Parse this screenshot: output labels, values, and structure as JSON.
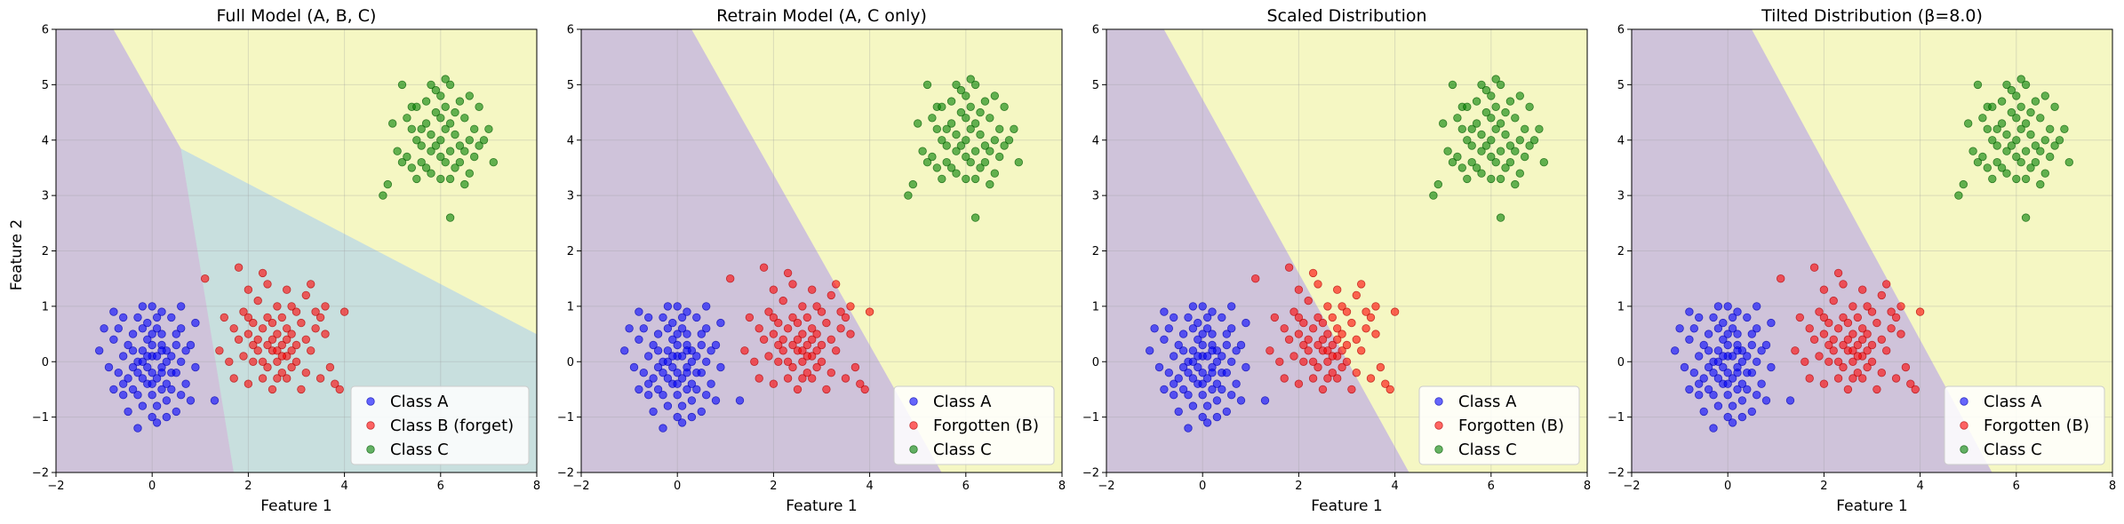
{
  "figure": {
    "ylabel": "Feature 2"
  },
  "chart_data": [
    {
      "type": "scatter",
      "title": "Full Model (A, B, C)",
      "xlabel": "Feature 1",
      "ylabel": "Feature 2",
      "xlim": [
        -2,
        8
      ],
      "ylim": [
        -2,
        6
      ],
      "xticks": [
        -2,
        0,
        2,
        4,
        6,
        8
      ],
      "yticks": [
        -2,
        -1,
        0,
        1,
        2,
        3,
        4,
        5,
        6
      ],
      "grid": true,
      "legend_position": "lower-right",
      "regions": [
        {
          "name": "Class A region",
          "color": "#cfc3da",
          "polygon": [
            [
              -2,
              6
            ],
            [
              -0.8,
              6
            ],
            [
              0.6,
              3.85
            ],
            [
              1.7,
              -2
            ],
            [
              -2,
              -2
            ]
          ]
        },
        {
          "name": "Class B region",
          "color": "#c8dfde",
          "polygon": [
            [
              0.6,
              3.85
            ],
            [
              8,
              0.5
            ],
            [
              8,
              -2
            ],
            [
              1.7,
              -2
            ]
          ]
        },
        {
          "name": "Class C region",
          "color": "#f5f7c3",
          "polygon": [
            [
              -0.8,
              6
            ],
            [
              8,
              6
            ],
            [
              8,
              0.5
            ],
            [
              0.6,
              3.85
            ]
          ]
        }
      ],
      "legend": [
        {
          "label": "Class A",
          "color": "#0000ff"
        },
        {
          "label": "Class B (forget)",
          "color": "#ff0000"
        },
        {
          "label": "Class C",
          "color": "#008000"
        }
      ]
    },
    {
      "type": "scatter",
      "title": "Retrain Model (A, C only)",
      "xlabel": "Feature 1",
      "ylabel": "",
      "xlim": [
        -2,
        8
      ],
      "ylim": [
        -2,
        6
      ],
      "xticks": [
        -2,
        0,
        2,
        4,
        6,
        8
      ],
      "yticks": [
        -2,
        -1,
        0,
        1,
        2,
        3,
        4,
        5,
        6
      ],
      "grid": true,
      "legend_position": "lower-right",
      "regions": [
        {
          "name": "Class A region",
          "color": "#cfc3da",
          "polygon": [
            [
              -2,
              6
            ],
            [
              0.3,
              6
            ],
            [
              5.5,
              -2
            ],
            [
              -2,
              -2
            ]
          ]
        },
        {
          "name": "Class C region",
          "color": "#f5f7c3",
          "polygon": [
            [
              0.3,
              6
            ],
            [
              8,
              6
            ],
            [
              8,
              -2
            ],
            [
              5.5,
              -2
            ]
          ]
        }
      ],
      "legend": [
        {
          "label": "Class A",
          "color": "#0000ff"
        },
        {
          "label": "Forgotten (B)",
          "color": "#ff0000"
        },
        {
          "label": "Class C",
          "color": "#008000"
        }
      ]
    },
    {
      "type": "scatter",
      "title": "Scaled Distribution",
      "xlabel": "Feature 1",
      "ylabel": "",
      "xlim": [
        -2,
        8
      ],
      "ylim": [
        -2,
        6
      ],
      "xticks": [
        -2,
        0,
        2,
        4,
        6,
        8
      ],
      "yticks": [
        -2,
        -1,
        0,
        1,
        2,
        3,
        4,
        5,
        6
      ],
      "grid": true,
      "legend_position": "lower-right",
      "regions": [
        {
          "name": "Class A region",
          "color": "#cfc3da",
          "polygon": [
            [
              -2,
              6
            ],
            [
              -0.8,
              6
            ],
            [
              4.3,
              -2
            ],
            [
              -2,
              -2
            ]
          ]
        },
        {
          "name": "Class C region",
          "color": "#f5f7c3",
          "polygon": [
            [
              -0.8,
              6
            ],
            [
              8,
              6
            ],
            [
              8,
              -2
            ],
            [
              4.3,
              -2
            ]
          ]
        }
      ],
      "legend": [
        {
          "label": "Class A",
          "color": "#0000ff"
        },
        {
          "label": "Forgotten (B)",
          "color": "#ff0000"
        },
        {
          "label": "Class C",
          "color": "#008000"
        }
      ]
    },
    {
      "type": "scatter",
      "title": "Tilted Distribution (β=8.0)",
      "xlabel": "Feature 1",
      "ylabel": "",
      "xlim": [
        -2,
        8
      ],
      "ylim": [
        -2,
        6
      ],
      "xticks": [
        -2,
        0,
        2,
        4,
        6,
        8
      ],
      "yticks": [
        -2,
        -1,
        0,
        1,
        2,
        3,
        4,
        5,
        6
      ],
      "grid": true,
      "legend_position": "lower-right",
      "regions": [
        {
          "name": "Class A region",
          "color": "#cfc3da",
          "polygon": [
            [
              -2,
              6
            ],
            [
              0.5,
              6
            ],
            [
              5.5,
              -2
            ],
            [
              -2,
              -2
            ]
          ]
        },
        {
          "name": "Class C region",
          "color": "#f5f7c3",
          "polygon": [
            [
              0.5,
              6
            ],
            [
              8,
              6
            ],
            [
              8,
              -2
            ],
            [
              5.5,
              -2
            ]
          ]
        }
      ],
      "legend": [
        {
          "label": "Class A",
          "color": "#0000ff"
        },
        {
          "label": "Forgotten (B)",
          "color": "#ff0000"
        },
        {
          "label": "Class C",
          "color": "#008000"
        }
      ]
    }
  ],
  "scatter_points": {
    "class_a": [
      [
        0.0,
        0.1
      ],
      [
        0.2,
        0.3
      ],
      [
        -0.3,
        0.0
      ],
      [
        0.4,
        -0.2
      ],
      [
        -0.1,
        -0.4
      ],
      [
        0.1,
        0.6
      ],
      [
        -0.5,
        0.3
      ],
      [
        0.5,
        0.5
      ],
      [
        -0.2,
        -0.8
      ],
      [
        0.3,
        -0.7
      ],
      [
        0.0,
        -1.0
      ],
      [
        -0.4,
        -0.5
      ],
      [
        0.6,
        0.0
      ],
      [
        -0.6,
        0.1
      ],
      [
        0.2,
        0.9
      ],
      [
        -0.3,
        0.8
      ],
      [
        0.7,
        -0.4
      ],
      [
        -0.7,
        -0.2
      ],
      [
        0.1,
        -0.3
      ],
      [
        -0.1,
        0.4
      ],
      [
        0.3,
        0.2
      ],
      [
        -0.2,
        0.2
      ],
      [
        0.0,
        -0.6
      ],
      [
        0.4,
        0.8
      ],
      [
        -0.4,
        0.5
      ],
      [
        0.8,
        0.3
      ],
      [
        -0.8,
        0.4
      ],
      [
        0.5,
        -0.9
      ],
      [
        -0.5,
        -0.9
      ],
      [
        0.1,
        -1.1
      ],
      [
        -0.2,
        1.0
      ],
      [
        0.6,
        1.0
      ],
      [
        -0.6,
        0.8
      ],
      [
        0.9,
        -0.1
      ],
      [
        -0.9,
        -0.1
      ],
      [
        0.2,
        -0.1
      ],
      [
        -0.3,
        -0.2
      ],
      [
        0.0,
        0.3
      ],
      [
        0.3,
        -0.4
      ],
      [
        -0.1,
        -0.1
      ],
      [
        0.1,
        0.1
      ],
      [
        -0.2,
        -0.3
      ],
      [
        0.4,
        0.1
      ],
      [
        -0.4,
        -0.1
      ],
      [
        0.2,
        0.5
      ],
      [
        -0.1,
        0.7
      ],
      [
        0.6,
        -0.6
      ],
      [
        -0.6,
        -0.6
      ],
      [
        0.0,
        -0.2
      ],
      [
        0.2,
        -0.5
      ],
      [
        -1.0,
        0.6
      ],
      [
        1.3,
        -0.7
      ],
      [
        -0.3,
        -1.2
      ],
      [
        0.3,
        -1.0
      ],
      [
        -0.8,
        0.9
      ],
      [
        0.9,
        0.7
      ],
      [
        0.0,
        0.5
      ],
      [
        -0.5,
        -0.3
      ],
      [
        0.5,
        -0.2
      ],
      [
        0.1,
        -0.8
      ],
      [
        -0.2,
        0.0
      ],
      [
        0.3,
        0.0
      ],
      [
        -0.4,
        0.2
      ],
      [
        0.7,
        0.2
      ],
      [
        -0.7,
        0.6
      ],
      [
        0.1,
        0.8
      ],
      [
        -0.3,
        -0.6
      ],
      [
        0.4,
        -0.5
      ],
      [
        0.0,
        -0.4
      ],
      [
        -0.1,
        0.1
      ],
      [
        0.2,
        0.2
      ],
      [
        -0.6,
        -0.4
      ],
      [
        0.5,
        0.3
      ],
      [
        0.8,
        -0.7
      ],
      [
        -0.8,
        -0.5
      ],
      [
        0.2,
        -0.2
      ],
      [
        -0.2,
        0.6
      ],
      [
        0.6,
        0.6
      ],
      [
        0.0,
        1.0
      ],
      [
        -1.1,
        0.2
      ]
    ],
    "class_b": [
      [
        2.5,
        0.4
      ],
      [
        2.8,
        0.6
      ],
      [
        2.2,
        0.2
      ],
      [
        3.0,
        0.3
      ],
      [
        2.6,
        0.0
      ],
      [
        2.4,
        0.8
      ],
      [
        2.0,
        0.5
      ],
      [
        3.1,
        0.7
      ],
      [
        2.7,
        -0.2
      ],
      [
        2.3,
        -0.3
      ],
      [
        2.9,
        -0.1
      ],
      [
        2.1,
        0.0
      ],
      [
        3.3,
        0.2
      ],
      [
        1.8,
        0.4
      ],
      [
        2.6,
        1.0
      ],
      [
        2.2,
        1.1
      ],
      [
        3.4,
        0.9
      ],
      [
        1.9,
        0.9
      ],
      [
        2.8,
        1.3
      ],
      [
        2.4,
        1.4
      ],
      [
        3.2,
        1.2
      ],
      [
        2.0,
        1.3
      ],
      [
        3.6,
        0.5
      ],
      [
        1.6,
        0.0
      ],
      [
        2.5,
        0.2
      ],
      [
        2.7,
        0.3
      ],
      [
        2.9,
        0.5
      ],
      [
        2.3,
        0.6
      ],
      [
        2.1,
        0.7
      ],
      [
        3.0,
        0.0
      ],
      [
        2.4,
        -0.1
      ],
      [
        2.6,
        0.5
      ],
      [
        2.8,
        0.1
      ],
      [
        3.2,
        -0.2
      ],
      [
        1.7,
        0.6
      ],
      [
        3.5,
        -0.3
      ],
      [
        2.0,
        -0.4
      ],
      [
        3.7,
        -0.1
      ],
      [
        2.5,
        -0.5
      ],
      [
        3.1,
        -0.5
      ],
      [
        1.8,
        1.7
      ],
      [
        2.3,
        1.6
      ],
      [
        2.9,
        1.0
      ],
      [
        3.3,
        1.4
      ],
      [
        1.5,
        0.8
      ],
      [
        1.1,
        1.5
      ],
      [
        4.0,
        0.9
      ],
      [
        3.6,
        1.0
      ],
      [
        2.7,
        0.8
      ],
      [
        2.2,
        0.4
      ],
      [
        3.8,
        -0.4
      ],
      [
        1.9,
        0.1
      ],
      [
        2.6,
        -0.3
      ],
      [
        3.0,
        0.9
      ],
      [
        2.4,
        0.3
      ],
      [
        2.8,
        0.4
      ],
      [
        2.1,
        0.3
      ],
      [
        3.4,
        0.6
      ],
      [
        2.7,
        0.1
      ],
      [
        2.5,
        0.7
      ],
      [
        1.7,
        -0.3
      ],
      [
        3.9,
        -0.5
      ],
      [
        2.3,
        0.0
      ],
      [
        2.9,
        0.2
      ],
      [
        2.6,
        0.2
      ],
      [
        3.2,
        0.4
      ],
      [
        2.0,
        0.8
      ],
      [
        1.4,
        0.2
      ],
      [
        3.5,
        0.8
      ],
      [
        2.8,
        -0.3
      ]
    ],
    "class_c": [
      [
        6.0,
        4.0
      ],
      [
        6.2,
        4.3
      ],
      [
        5.8,
        3.8
      ],
      [
        6.4,
        3.9
      ],
      [
        5.9,
        4.5
      ],
      [
        6.1,
        3.6
      ],
      [
        5.6,
        4.2
      ],
      [
        6.5,
        4.4
      ],
      [
        5.7,
        3.5
      ],
      [
        6.3,
        3.5
      ],
      [
        5.5,
        4.0
      ],
      [
        6.6,
        4.0
      ],
      [
        6.0,
        4.8
      ],
      [
        5.8,
        5.0
      ],
      [
        6.2,
        5.0
      ],
      [
        5.4,
        4.6
      ],
      [
        6.8,
        4.6
      ],
      [
        5.3,
        3.7
      ],
      [
        6.7,
        3.7
      ],
      [
        6.0,
        3.3
      ],
      [
        5.5,
        3.3
      ],
      [
        6.5,
        3.2
      ],
      [
        5.0,
        4.3
      ],
      [
        7.0,
        4.2
      ],
      [
        4.9,
        3.2
      ],
      [
        7.1,
        3.6
      ],
      [
        6.2,
        2.6
      ],
      [
        5.2,
        5.0
      ],
      [
        6.1,
        4.6
      ],
      [
        6.3,
        4.1
      ],
      [
        5.9,
        3.9
      ],
      [
        5.7,
        4.3
      ],
      [
        6.4,
        4.7
      ],
      [
        5.6,
        3.6
      ],
      [
        6.6,
        3.4
      ],
      [
        5.4,
        4.2
      ],
      [
        6.9,
        4.0
      ],
      [
        5.1,
        3.8
      ],
      [
        6.0,
        3.7
      ],
      [
        6.2,
        3.8
      ],
      [
        5.8,
        4.1
      ],
      [
        5.5,
        4.6
      ],
      [
        6.5,
        3.8
      ],
      [
        6.1,
        4.2
      ],
      [
        5.9,
        4.9
      ],
      [
        6.3,
        4.5
      ],
      [
        5.3,
        4.4
      ],
      [
        6.7,
        4.2
      ],
      [
        5.2,
        3.6
      ],
      [
        4.8,
        3.0
      ],
      [
        5.6,
        3.9
      ],
      [
        6.4,
        3.6
      ],
      [
        6.1,
        5.1
      ],
      [
        5.7,
        4.7
      ],
      [
        6.0,
        4.4
      ],
      [
        6.8,
        3.9
      ],
      [
        5.4,
        3.5
      ],
      [
        6.6,
        4.8
      ],
      [
        5.8,
        3.4
      ],
      [
        6.2,
        3.3
      ]
    ]
  }
}
